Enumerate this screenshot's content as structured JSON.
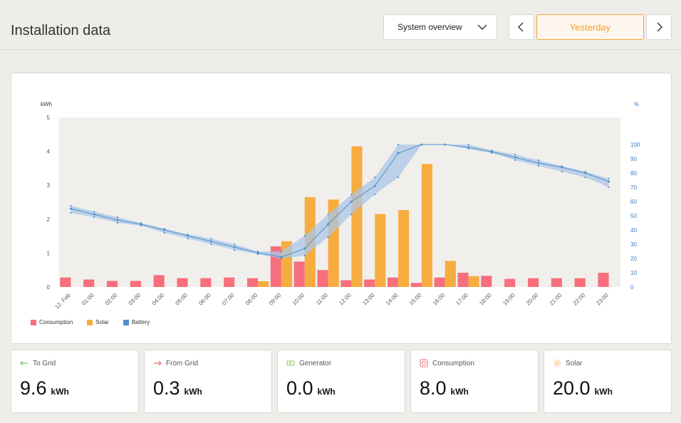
{
  "header": {
    "title": "Installation data",
    "view_select": "System overview",
    "date_label": "Yesterday"
  },
  "chart_data": {
    "type": "bar",
    "ylabel_left": "kWh",
    "ylabel_right": "%",
    "ylim_left": [
      0,
      5
    ],
    "ylim_right": [
      0,
      100
    ],
    "yticks_left": [
      "0",
      "1",
      "2",
      "3",
      "4",
      "5"
    ],
    "yticks_right": [
      "0",
      "10",
      "20",
      "30",
      "40",
      "50",
      "60",
      "70",
      "80",
      "90",
      "100"
    ],
    "categories": [
      "12. Feb",
      "01:00",
      "02:00",
      "03:00",
      "04:00",
      "05:00",
      "06:00",
      "07:00",
      "08:00",
      "09:00",
      "10:00",
      "11:00",
      "12:00",
      "13:00",
      "14:00",
      "15:00",
      "16:00",
      "17:00",
      "18:00",
      "19:00",
      "20:00",
      "21:00",
      "22:00",
      "23:00"
    ],
    "series": [
      {
        "name": "Consumption",
        "color": "#f76f7d",
        "values": [
          0.28,
          0.22,
          0.18,
          0.18,
          0.35,
          0.26,
          0.26,
          0.28,
          0.26,
          1.2,
          0.75,
          0.5,
          0.2,
          0.22,
          0.28,
          0.12,
          0.28,
          0.42,
          0.33,
          0.24,
          0.26,
          0.26,
          0.26,
          0.42
        ]
      },
      {
        "name": "Solar",
        "color": "#f7ac3f",
        "values": [
          0,
          0,
          0,
          0,
          0,
          0,
          0,
          0,
          0.17,
          1.35,
          2.65,
          2.58,
          4.15,
          2.15,
          2.27,
          3.63,
          0.77,
          0.32,
          0,
          0,
          0,
          0,
          0,
          0
        ]
      },
      {
        "name": "Battery",
        "color": "#4f8fce",
        "values": [
          55,
          51,
          47,
          44,
          40,
          36,
          32,
          28,
          24,
          21,
          27,
          44,
          60,
          71,
          94,
          100,
          100,
          98,
          95,
          91,
          87,
          84,
          80,
          74
        ],
        "max": [
          57,
          53,
          49,
          45,
          41,
          37,
          34,
          30,
          25,
          25,
          36,
          51,
          65,
          77,
          100,
          100,
          100,
          100,
          96,
          93,
          89,
          85,
          81,
          76
        ],
        "min": [
          52,
          49,
          45,
          43,
          38,
          34,
          30,
          26,
          23,
          20,
          22,
          35,
          51,
          65,
          77,
          100,
          100,
          97,
          94,
          89,
          85,
          81,
          77,
          70
        ]
      }
    ],
    "legend": "bottom-left",
    "grid": false
  },
  "stats": [
    {
      "label": "To Grid",
      "value": "9.6",
      "unit": "kWh",
      "icon": "arrow-left-icon",
      "color": "#7cc06c"
    },
    {
      "label": "From Grid",
      "value": "0.3",
      "unit": "kWh",
      "icon": "arrow-right-icon",
      "color": "#ef6a5e"
    },
    {
      "label": "Generator",
      "value": "0.0",
      "unit": "kWh",
      "icon": "generator-icon",
      "color": "#8fbf5a"
    },
    {
      "label": "Consumption",
      "value": "8.0",
      "unit": "kWh",
      "icon": "consumption-icon",
      "color": "#ef6a6a"
    },
    {
      "label": "Solar",
      "value": "20.0",
      "unit": "kWh",
      "icon": "sun-icon",
      "color": "#f2a33a"
    }
  ]
}
